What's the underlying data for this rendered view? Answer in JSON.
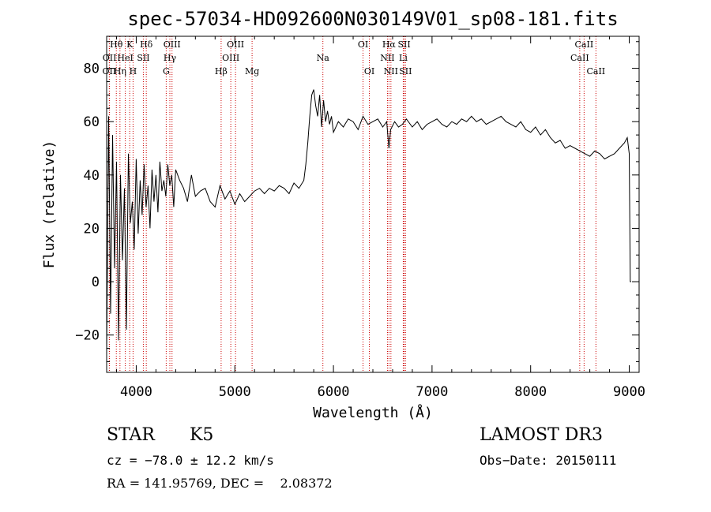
{
  "chart_data": {
    "type": "line",
    "title": "spec-57034-HD092600N030149V01_sp08-181.fits",
    "xlabel": "Wavelength (Å)",
    "ylabel": "Flux (relative)",
    "xlim": [
      3700,
      9100
    ],
    "ylim": [
      -34,
      92
    ],
    "x_ticks": [
      4000,
      5000,
      6000,
      7000,
      8000,
      9000
    ],
    "x_tick_labels": [
      "4000",
      "5000",
      "6000",
      "7000",
      "8000",
      "9000"
    ],
    "y_ticks": [
      -20,
      0,
      20,
      40,
      60,
      80
    ],
    "y_tick_labels": [
      "−20",
      "0",
      "20",
      "40",
      "60",
      "80"
    ],
    "grid": false,
    "series": [
      {
        "name": "spectrum",
        "x": [
          3700,
          3720,
          3740,
          3760,
          3780,
          3800,
          3820,
          3840,
          3860,
          3880,
          3900,
          3920,
          3940,
          3960,
          3980,
          4000,
          4020,
          4040,
          4060,
          4080,
          4100,
          4120,
          4140,
          4160,
          4180,
          4200,
          4220,
          4240,
          4260,
          4280,
          4300,
          4320,
          4340,
          4360,
          4380,
          4400,
          4440,
          4480,
          4520,
          4560,
          4600,
          4650,
          4700,
          4750,
          4800,
          4850,
          4900,
          4950,
          5000,
          5050,
          5100,
          5150,
          5200,
          5250,
          5300,
          5350,
          5400,
          5450,
          5500,
          5550,
          5600,
          5650,
          5700,
          5720,
          5740,
          5760,
          5780,
          5800,
          5820,
          5840,
          5860,
          5880,
          5900,
          5920,
          5940,
          5960,
          5980,
          6000,
          6050,
          6100,
          6150,
          6200,
          6250,
          6300,
          6350,
          6400,
          6450,
          6500,
          6540,
          6563,
          6580,
          6620,
          6660,
          6700,
          6740,
          6800,
          6850,
          6900,
          6950,
          7000,
          7050,
          7100,
          7150,
          7200,
          7250,
          7300,
          7350,
          7400,
          7450,
          7500,
          7550,
          7600,
          7650,
          7700,
          7750,
          7800,
          7850,
          7900,
          7950,
          8000,
          8050,
          8100,
          8150,
          8200,
          8250,
          8300,
          8350,
          8400,
          8450,
          8500,
          8550,
          8600,
          8650,
          8700,
          8750,
          8800,
          8850,
          8900,
          8950,
          8980,
          9000,
          9010,
          9020
        ],
        "y": [
          -28,
          62,
          -12,
          55,
          5,
          45,
          -22,
          40,
          8,
          35,
          -18,
          48,
          22,
          30,
          12,
          46,
          18,
          38,
          25,
          44,
          28,
          36,
          20,
          42,
          30,
          40,
          26,
          45,
          34,
          38,
          32,
          44,
          36,
          40,
          28,
          42,
          38,
          35,
          30,
          40,
          32,
          34,
          35,
          30,
          28,
          36,
          31,
          34,
          29,
          33,
          30,
          32,
          34,
          35,
          33,
          35,
          34,
          36,
          35,
          33,
          37,
          35,
          38,
          44,
          52,
          62,
          70,
          72,
          66,
          62,
          70,
          58,
          68,
          60,
          64,
          59,
          62,
          56,
          60,
          58,
          61,
          60,
          57,
          62,
          59,
          60,
          61,
          58,
          60,
          50,
          57,
          60,
          58,
          59,
          61,
          58,
          60,
          57,
          59,
          60,
          61,
          59,
          58,
          60,
          59,
          61,
          60,
          62,
          60,
          61,
          59,
          60,
          61,
          62,
          60,
          59,
          58,
          60,
          57,
          56,
          58,
          55,
          57,
          54,
          52,
          53,
          50,
          51,
          50,
          49,
          48,
          47,
          49,
          48,
          46,
          47,
          48,
          50,
          52,
          54,
          48,
          0,
          0
        ]
      }
    ],
    "line_markers": [
      {
        "label": "OII",
        "wavelength": 3727,
        "row": 2
      },
      {
        "label": "OII",
        "wavelength": 3729,
        "row": 1
      },
      {
        "label": "Hθ",
        "wavelength": 3798,
        "row": 0
      },
      {
        "label": "Hη",
        "wavelength": 3835,
        "row": 2
      },
      {
        "label": "HeI",
        "wavelength": 3889,
        "row": 1
      },
      {
        "label": "K",
        "wavelength": 3934,
        "row": 0
      },
      {
        "label": "H",
        "wavelength": 3968,
        "row": 2
      },
      {
        "label": "SII",
        "wavelength": 4072,
        "row": 1
      },
      {
        "label": "Hδ",
        "wavelength": 4102,
        "row": 0
      },
      {
        "label": "G",
        "wavelength": 4304,
        "row": 2
      },
      {
        "label": "Hγ",
        "wavelength": 4341,
        "row": 1
      },
      {
        "label": "OIII",
        "wavelength": 4363,
        "row": 0
      },
      {
        "label": "Hβ",
        "wavelength": 4861,
        "row": 2
      },
      {
        "label": "OIII",
        "wavelength": 4959,
        "row": 1
      },
      {
        "label": "OIII",
        "wavelength": 5007,
        "row": 0
      },
      {
        "label": "Mg",
        "wavelength": 5175,
        "row": 2
      },
      {
        "label": "Na",
        "wavelength": 5893,
        "row": 1
      },
      {
        "label": "OI",
        "wavelength": 6300,
        "row": 0
      },
      {
        "label": "OI",
        "wavelength": 6364,
        "row": 2
      },
      {
        "label": "NII",
        "wavelength": 6548,
        "row": 1
      },
      {
        "label": "Hα",
        "wavelength": 6563,
        "row": 0
      },
      {
        "label": "NII",
        "wavelength": 6583,
        "row": 2
      },
      {
        "label": "Li",
        "wavelength": 6708,
        "row": 1
      },
      {
        "label": "SII",
        "wavelength": 6717,
        "row": 0
      },
      {
        "label": "SII",
        "wavelength": 6731,
        "row": 2
      },
      {
        "label": "CaII",
        "wavelength": 8498,
        "row": 1
      },
      {
        "label": "CaII",
        "wavelength": 8542,
        "row": 0
      },
      {
        "label": "CaII",
        "wavelength": 8662,
        "row": 2
      }
    ],
    "colors": {
      "spectrum": "#000000",
      "markers": "#cc0000",
      "axes": "#000000"
    }
  },
  "info": {
    "class": "STAR",
    "subclass": "K5",
    "survey": "LAMOST DR3",
    "cz": "cz = −78.0 ± 12.2 km/s",
    "obs_date": "Obs−Date: 20150111",
    "radec": "RA = 141.95769, DEC =    2.08372"
  }
}
